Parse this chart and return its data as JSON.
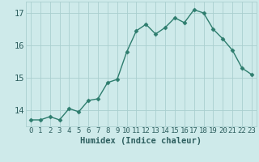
{
  "title": "",
  "xlabel": "Humidex (Indice chaleur)",
  "x": [
    0,
    1,
    2,
    3,
    4,
    5,
    6,
    7,
    8,
    9,
    10,
    11,
    12,
    13,
    14,
    15,
    16,
    17,
    18,
    19,
    20,
    21,
    22,
    23
  ],
  "y": [
    13.7,
    13.7,
    13.8,
    13.7,
    14.05,
    13.95,
    14.3,
    14.35,
    14.85,
    14.95,
    15.8,
    16.45,
    16.65,
    16.35,
    16.55,
    16.85,
    16.7,
    17.1,
    17.0,
    16.5,
    16.2,
    15.85,
    15.3,
    15.1
  ],
  "line_color": "#2e7d6e",
  "marker": "D",
  "marker_size": 2.5,
  "line_width": 1.0,
  "bg_color": "#ceeaea",
  "grid_color": "#aacfcf",
  "tick_label_color": "#2e5f5f",
  "ylim": [
    13.5,
    17.35
  ],
  "yticks": [
    14,
    15,
    16,
    17
  ],
  "xticks": [
    0,
    1,
    2,
    3,
    4,
    5,
    6,
    7,
    8,
    9,
    10,
    11,
    12,
    13,
    14,
    15,
    16,
    17,
    18,
    19,
    20,
    21,
    22,
    23
  ],
  "fontsize_ticks": 6.5,
  "fontsize_xlabel": 7.5
}
